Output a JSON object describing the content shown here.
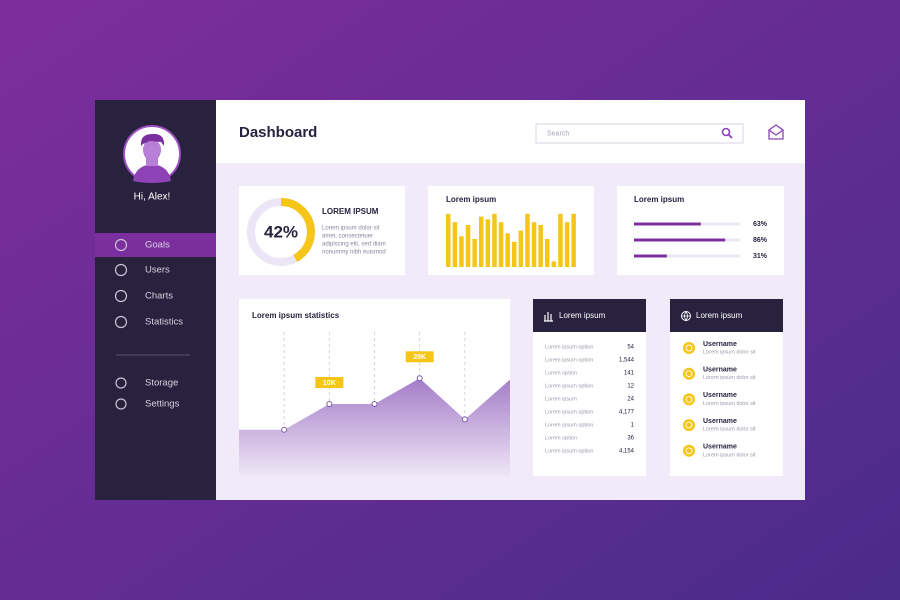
{
  "sidebar": {
    "greeting": "Hi, Alex!",
    "menu": [
      "Goals",
      "Users",
      "Charts",
      "Statistics"
    ],
    "active": 0,
    "secondary": [
      "Storage",
      "Settings"
    ]
  },
  "header": {
    "title": "Dashboard",
    "search_placeholder": "Search"
  },
  "summary": {
    "percent": {
      "value": 42,
      "label": "42%"
    },
    "heading": "LOREM IPSUM",
    "text_lines": [
      "Lorem ipsum dolor sit",
      "amet, consectetuer",
      "adipiscing elit, sed diam",
      "nonummy nibh euismod"
    ],
    "color": "#f5c518"
  },
  "bars": {
    "title": "Lorem ipsum",
    "values": [
      95,
      80,
      55,
      75,
      50,
      90,
      85,
      95,
      80,
      60,
      45,
      65,
      95,
      80,
      75,
      50,
      10,
      95,
      80,
      95
    ],
    "ylim": [
      0,
      100
    ],
    "color": "#f5c518"
  },
  "progress": {
    "title": "Lorem ipsum",
    "items": [
      {
        "value": 63,
        "label": "63%"
      },
      {
        "value": 86,
        "label": "86%"
      },
      {
        "value": 31,
        "label": "31%"
      }
    ],
    "color": "#7b2f9e"
  },
  "statistics": {
    "title": "Lorem ipsum statistics",
    "values": [
      0,
      0,
      10,
      10,
      20,
      4,
      19.5
    ],
    "value_labels": [
      null,
      null,
      "10K",
      null,
      "20K",
      null,
      null
    ],
    "ylim": [
      -18,
      38
    ]
  },
  "table": {
    "title": "Lorem ipsum",
    "rows": [
      [
        "Lorem ipsum option",
        "54"
      ],
      [
        "Lorem ipsum option",
        "1,544"
      ],
      [
        "Lorem option",
        "141"
      ],
      [
        "Lorem ipsum option",
        "12"
      ],
      [
        "Lorem ipsum",
        "24"
      ],
      [
        "Lorem ipsum option",
        "4,177"
      ],
      [
        "Lorem ipsum option",
        "1"
      ],
      [
        "Lorem option",
        "36"
      ],
      [
        "Lorem ipsum option",
        "4,154"
      ]
    ]
  },
  "users": {
    "title": "Lorem ipsum",
    "items": [
      {
        "name": "Username",
        "text": "Lorem ipsum dolor sit"
      },
      {
        "name": "Username",
        "text": "Lorem ipsum dolor sit"
      },
      {
        "name": "Username",
        "text": "Lorem ipsum dolor sit"
      },
      {
        "name": "Username",
        "text": "Lorem ipsum dolor sit"
      },
      {
        "name": "Username",
        "text": "Lorem ipsum dolor sit"
      }
    ]
  }
}
